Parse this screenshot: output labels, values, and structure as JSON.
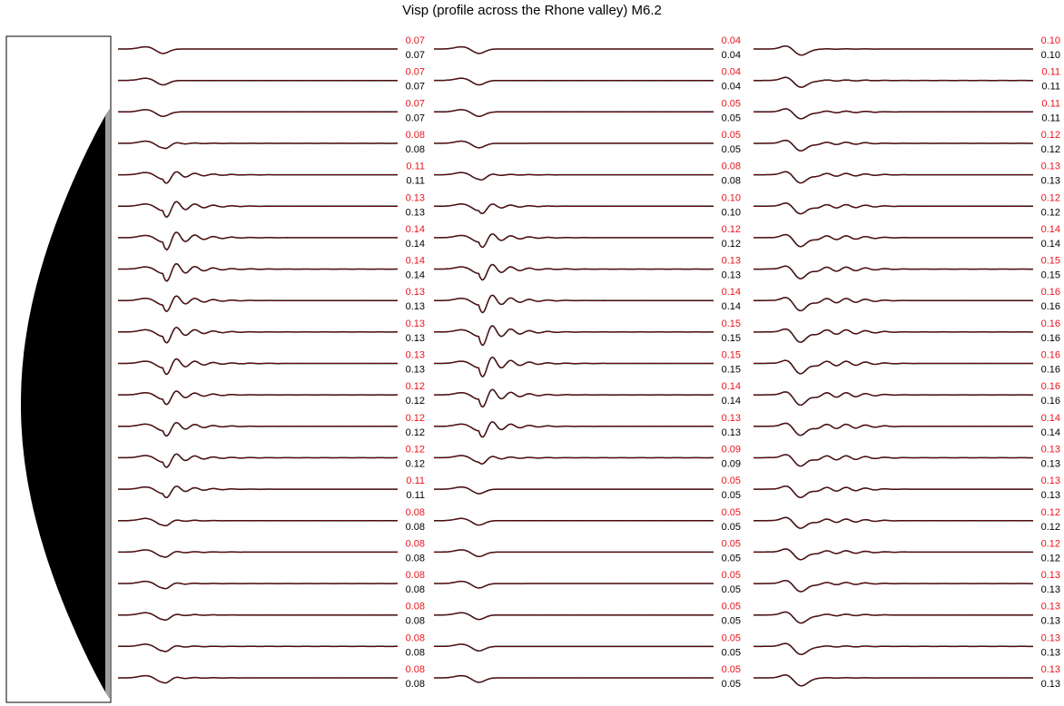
{
  "title": "Visp (profile across the Rhone valley) M6.2",
  "colors": {
    "synthetic": "#e8141c",
    "observed": "#000000",
    "sediment": "#000000",
    "bedrock_edge": "#a0a0a0"
  },
  "chart_data": {
    "type": "line",
    "title": "Visp (profile across the Rhone valley) M6.2",
    "columns": [
      {
        "red_peaks": [
          "0.07",
          "0.07",
          "0.07",
          "0.08",
          "0.11",
          "0.13",
          "0.14",
          "0.14",
          "0.13",
          "0.13",
          "0.13",
          "0.12",
          "0.12",
          "0.12",
          "0.11",
          "0.08",
          "0.08",
          "0.08",
          "0.08",
          "0.08",
          "0.08"
        ],
        "black_peaks": [
          "0.07",
          "0.07",
          "0.07",
          "0.08",
          "0.11",
          "0.13",
          "0.14",
          "0.14",
          "0.13",
          "0.13",
          "0.13",
          "0.12",
          "0.12",
          "0.12",
          "0.11",
          "0.08",
          "0.08",
          "0.08",
          "0.08",
          "0.08",
          "0.08"
        ]
      },
      {
        "red_peaks": [
          "0.04",
          "0.04",
          "0.05",
          "0.05",
          "0.08",
          "0.10",
          "0.12",
          "0.13",
          "0.14",
          "0.15",
          "0.15",
          "0.14",
          "0.13",
          "0.09",
          "0.05",
          "0.05",
          "0.05",
          "0.05",
          "0.05",
          "0.05",
          "0.05"
        ],
        "black_peaks": [
          "0.04",
          "0.04",
          "0.05",
          "0.05",
          "0.08",
          "0.10",
          "0.12",
          "0.13",
          "0.14",
          "0.15",
          "0.15",
          "0.14",
          "0.13",
          "0.09",
          "0.05",
          "0.05",
          "0.05",
          "0.05",
          "0.05",
          "0.05",
          "0.05"
        ]
      },
      {
        "red_peaks": [
          "0.10",
          "0.11",
          "0.11",
          "0.12",
          "0.13",
          "0.12",
          "0.14",
          "0.15",
          "0.16",
          "0.16",
          "0.16",
          "0.16",
          "0.14",
          "0.13",
          "0.13",
          "0.12",
          "0.12",
          "0.13",
          "0.13",
          "0.13",
          "0.13"
        ],
        "black_peaks": [
          "0.10",
          "0.11",
          "0.11",
          "0.12",
          "0.13",
          "0.12",
          "0.14",
          "0.15",
          "0.16",
          "0.16",
          "0.16",
          "0.16",
          "0.14",
          "0.13",
          "0.13",
          "0.12",
          "0.12",
          "0.13",
          "0.13",
          "0.13",
          "0.13"
        ]
      }
    ]
  }
}
